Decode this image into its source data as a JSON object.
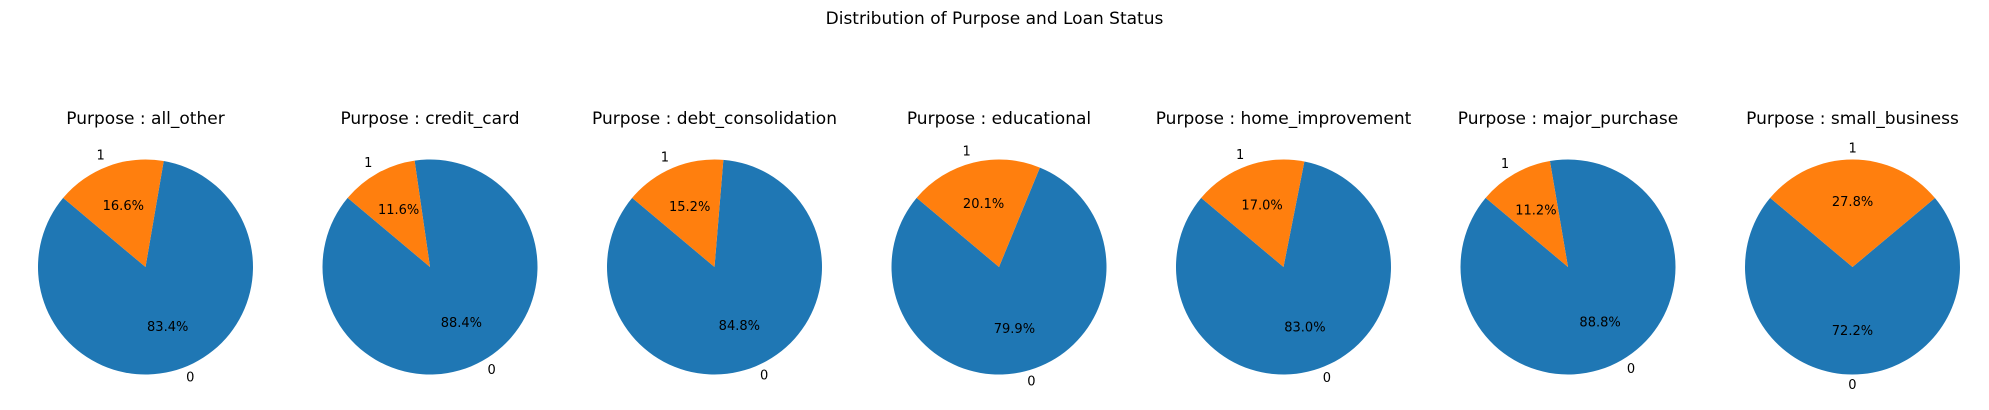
{
  "chart_data": {
    "type": "pie",
    "title": "Distribution of Purpose and Loan Status",
    "series_labels": [
      "0",
      "1"
    ],
    "colors": {
      "0": "#1f77b4",
      "1": "#ff7f0e"
    },
    "start_angle_deg": 140,
    "counterclockwise": true,
    "charts": [
      {
        "title": "Purpose : all_other",
        "categories": [
          "0",
          "1"
        ],
        "values": [
          83.4,
          16.6
        ],
        "labels": [
          "83.4%",
          "16.6%"
        ]
      },
      {
        "title": "Purpose : credit_card",
        "categories": [
          "0",
          "1"
        ],
        "values": [
          88.4,
          11.6
        ],
        "labels": [
          "88.4%",
          "11.6%"
        ]
      },
      {
        "title": "Purpose : debt_consolidation",
        "categories": [
          "0",
          "1"
        ],
        "values": [
          84.8,
          15.2
        ],
        "labels": [
          "84.8%",
          "15.2%"
        ]
      },
      {
        "title": "Purpose : educational",
        "categories": [
          "0",
          "1"
        ],
        "values": [
          79.9,
          20.1
        ],
        "labels": [
          "79.9%",
          "20.1%"
        ]
      },
      {
        "title": "Purpose : home_improvement",
        "categories": [
          "0",
          "1"
        ],
        "values": [
          83.0,
          17.0
        ],
        "labels": [
          "83.0%",
          "17.0%"
        ]
      },
      {
        "title": "Purpose : major_purchase",
        "categories": [
          "0",
          "1"
        ],
        "values": [
          88.8,
          11.2
        ],
        "labels": [
          "88.8%",
          "11.2%"
        ]
      },
      {
        "title": "Purpose : small_business",
        "categories": [
          "0",
          "1"
        ],
        "values": [
          72.2,
          27.8
        ],
        "labels": [
          "72.2%",
          "27.8%"
        ]
      }
    ]
  }
}
